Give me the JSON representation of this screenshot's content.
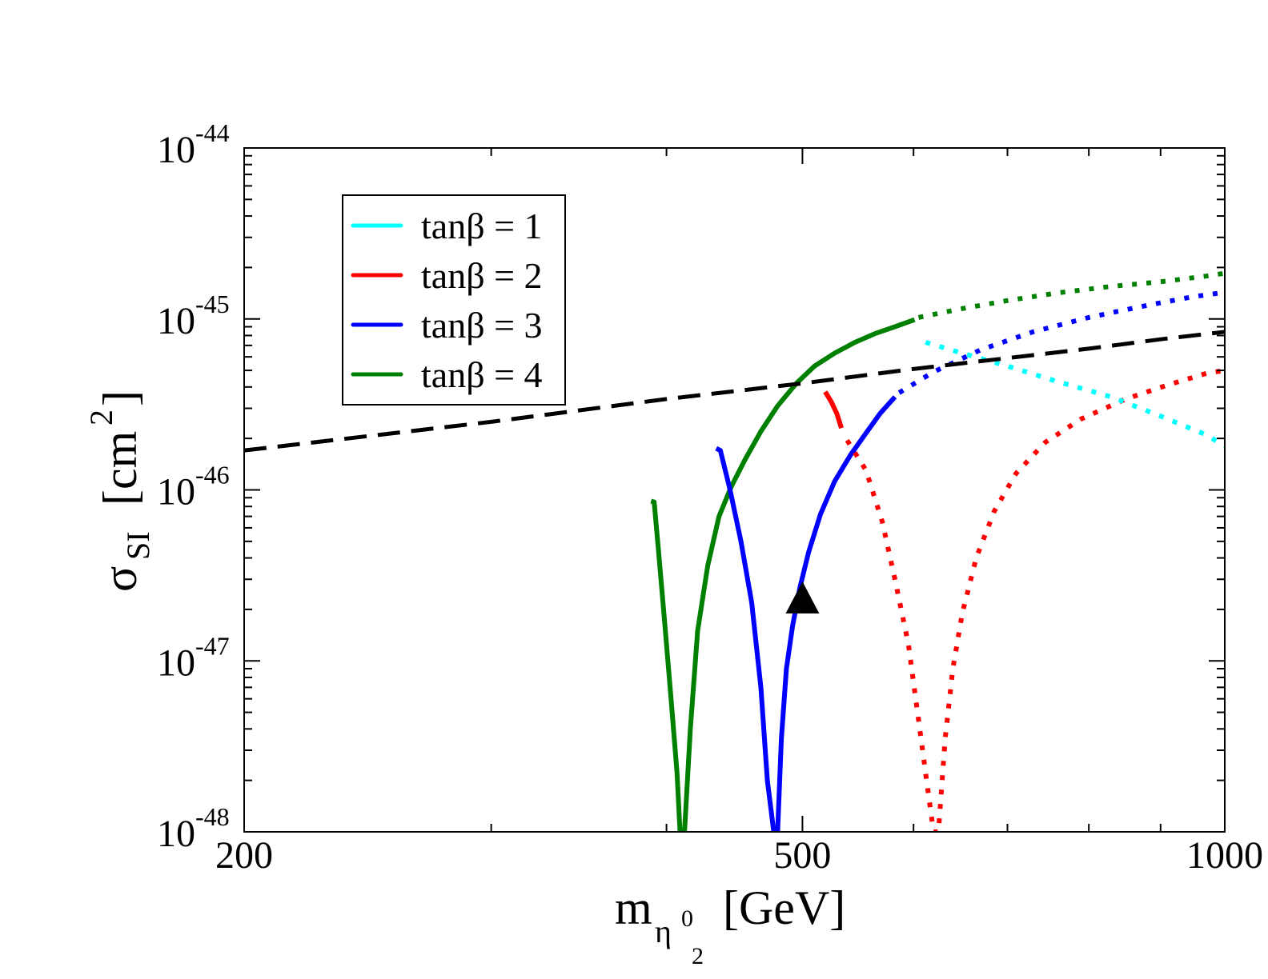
{
  "chart_data": {
    "type": "line",
    "x_scale": "log",
    "y_scale": "log",
    "xlim": [
      200,
      1000
    ],
    "ylim": [
      1e-48,
      1e-44
    ],
    "x_ticks": [
      {
        "value": 200,
        "label": "200"
      },
      {
        "value": 500,
        "label": "500"
      },
      {
        "value": 1000,
        "label": "1000"
      }
    ],
    "y_ticks": [
      {
        "value": 1e-44,
        "base": "10",
        "exp": "-44"
      },
      {
        "value": 1e-45,
        "base": "10",
        "exp": "-45"
      },
      {
        "value": 1e-46,
        "base": "10",
        "exp": "-46"
      },
      {
        "value": 1e-47,
        "base": "10",
        "exp": "-47"
      },
      {
        "value": 1e-48,
        "base": "10",
        "exp": "-48"
      }
    ],
    "xlabel": {
      "main": "m",
      "sub": "η",
      "subsup": "0",
      "subsub": "2",
      "unit": "[GeV]"
    },
    "ylabel": {
      "main": "σ",
      "sub": "SI",
      "unit_open": "[cm",
      "unit_sup": "2",
      "unit_close": "]"
    },
    "legend": {
      "position": "top-left",
      "entries": [
        {
          "label": "tanβ = 1",
          "color": "#00ffff"
        },
        {
          "label": "tanβ = 2",
          "color": "#ff0000"
        },
        {
          "label": "tanβ = 3",
          "color": "#0000ff"
        },
        {
          "label": "tanβ = 4",
          "color": "#008000"
        }
      ]
    },
    "series": [
      {
        "name": "tanβ = 4 (allowed)",
        "color": "#008000",
        "style": "solid",
        "x": [
          390,
          392,
          395,
          399,
          403,
          407,
          409,
          412,
          416,
          421,
          428,
          436,
          445,
          455,
          467,
          480,
          495,
          510,
          527,
          545,
          563,
          582,
          601
        ],
        "y": [
          8.6e-47,
          8.5e-47,
          4.2e-47,
          1.6e-47,
          6e-48,
          2.2e-48,
          1e-48,
          1e-48,
          4e-48,
          1.5e-47,
          3.6e-47,
          7e-47,
          1.05e-46,
          1.5e-46,
          2.2e-46,
          3.1e-46,
          4.2e-46,
          5.3e-46,
          6.3e-46,
          7.3e-46,
          8.2e-46,
          9e-46,
          9.9e-46
        ]
      },
      {
        "name": "tanβ = 4 (excluded)",
        "color": "#008000",
        "style": "dotted",
        "x": [
          605,
          650,
          700,
          760,
          830,
          900,
          970,
          1000
        ],
        "y": [
          1.02e-45,
          1.15e-45,
          1.28e-45,
          1.42e-45,
          1.55e-45,
          1.65e-45,
          1.78e-45,
          1.85e-45
        ]
      },
      {
        "name": "tanβ = 3 (allowed)",
        "color": "#0000ff",
        "style": "solid",
        "x": [
          434,
          437,
          444,
          452,
          460,
          467,
          472,
          477,
          480,
          483,
          487,
          492,
          498,
          505,
          515,
          527,
          541,
          555,
          568,
          582
        ],
        "y": [
          1.75e-46,
          1.7e-46,
          1e-46,
          5e-47,
          2.2e-47,
          7e-48,
          2e-48,
          1e-48,
          1e-48,
          3.5e-48,
          9e-48,
          1.6e-47,
          2.7e-47,
          4.3e-47,
          7.2e-47,
          1.12e-46,
          1.6e-46,
          2.15e-46,
          2.8e-46,
          3.5e-46
        ]
      },
      {
        "name": "tanβ = 3 (excluded)",
        "color": "#0000ff",
        "style": "dotted",
        "x": [
          586,
          620,
          670,
          730,
          800,
          880,
          950,
          1000
        ],
        "y": [
          3.7e-46,
          4.9e-46,
          6.6e-46,
          8.4e-46,
          1.02e-45,
          1.2e-45,
          1.35e-45,
          1.43e-45
        ]
      },
      {
        "name": "tanβ = 2 (allowed)",
        "color": "#ff0000",
        "style": "solid",
        "x": [
          519,
          524,
          529,
          533
        ],
        "y": [
          3.75e-46,
          3.3e-46,
          2.8e-46,
          2.3e-46
        ]
      },
      {
        "name": "tanβ = 2 (excluded)",
        "color": "#ff0000",
        "style": "dotted",
        "x": [
          538,
          555,
          570,
          582,
          595,
          604,
          613,
          620,
          625,
          632,
          640,
          650,
          665,
          685,
          710,
          745,
          790,
          850,
          910,
          970,
          1000
        ],
        "y": [
          1.95e-46,
          1.3e-46,
          6.5e-47,
          3e-47,
          1.25e-47,
          5e-48,
          2e-48,
          1e-48,
          1e-48,
          3.5e-48,
          9e-48,
          1.9e-47,
          4e-47,
          7.5e-47,
          1.25e-46,
          1.9e-46,
          2.6e-46,
          3.4e-46,
          4.1e-46,
          4.8e-46,
          5e-46
        ]
      },
      {
        "name": "tanβ = 1 (excluded)",
        "color": "#00ffff",
        "style": "dotted",
        "x": [
          612,
          650,
          700,
          760,
          830,
          900,
          970,
          1000
        ],
        "y": [
          7.3e-46,
          6.3e-46,
          5.3e-46,
          4.3e-46,
          3.5e-46,
          2.7e-46,
          2.1e-46,
          1.8e-46
        ]
      },
      {
        "name": "limit",
        "color": "#000000",
        "style": "dashed",
        "x": [
          200,
          300,
          400,
          500,
          600,
          700,
          800,
          900,
          1000
        ],
        "y": [
          1.7e-46,
          2.5e-46,
          3.4e-46,
          4.2e-46,
          5.1e-46,
          5.9e-46,
          6.7e-46,
          7.6e-46,
          8.4e-46
        ]
      }
    ],
    "markers": [
      {
        "shape": "triangle",
        "x": 500,
        "y": 2.2e-47,
        "color": "#000000"
      }
    ]
  }
}
